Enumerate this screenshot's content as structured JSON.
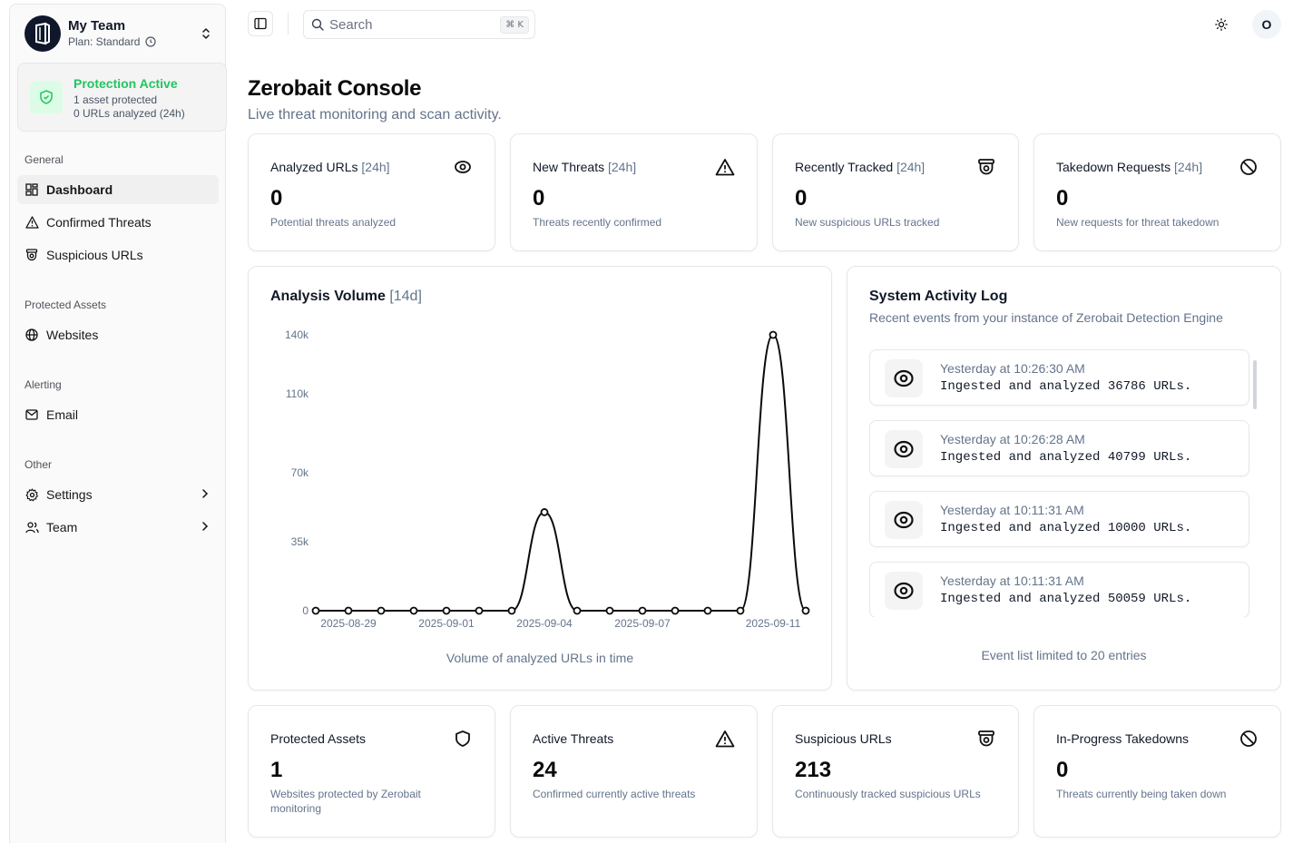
{
  "team": {
    "name": "My Team",
    "plan": "Plan: Standard"
  },
  "protection": {
    "title": "Protection Active",
    "assets": "1 asset protected",
    "urls": "0 URLs analyzed (24h)"
  },
  "nav": {
    "general": {
      "label": "General",
      "items": [
        "Dashboard",
        "Confirmed Threats",
        "Suspicious URLs"
      ]
    },
    "protected": {
      "label": "Protected Assets",
      "items": [
        "Websites"
      ]
    },
    "alerting": {
      "label": "Alerting",
      "items": [
        "Email"
      ]
    },
    "other": {
      "label": "Other",
      "items": [
        "Settings",
        "Team"
      ]
    }
  },
  "topbar": {
    "search_placeholder": "Search",
    "shortcut": "⌘ K",
    "avatar": "O"
  },
  "header": {
    "title": "Zerobait Console",
    "subtitle": "Live threat monitoring and scan activity."
  },
  "stats_top": [
    {
      "title": "Analyzed URLs",
      "range": "[24h]",
      "value": "0",
      "desc": "Potential threats analyzed",
      "icon": "scan-eye-icon"
    },
    {
      "title": "New Threats",
      "range": "[24h]",
      "value": "0",
      "desc": "Threats recently confirmed",
      "icon": "alert-triangle-icon"
    },
    {
      "title": "Recently Tracked",
      "range": "[24h]",
      "value": "0",
      "desc": "New suspicious URLs tracked",
      "icon": "cctv-icon"
    },
    {
      "title": "Takedown Requests",
      "range": "[24h]",
      "value": "0",
      "desc": "New requests for threat takedown",
      "icon": "ban-icon"
    }
  ],
  "stats_bottom": [
    {
      "title": "Protected Assets",
      "value": "1",
      "desc": "Websites protected by Zerobait monitoring",
      "icon": "shield-icon"
    },
    {
      "title": "Active Threats",
      "value": "24",
      "desc": "Confirmed currently active threats",
      "icon": "alert-triangle-icon"
    },
    {
      "title": "Suspicious URLs",
      "value": "213",
      "desc": "Continuously tracked suspicious URLs",
      "icon": "cctv-icon"
    },
    {
      "title": "In-Progress Takedowns",
      "value": "0",
      "desc": "Threats currently being taken down",
      "icon": "ban-icon"
    }
  ],
  "chart": {
    "title": "Analysis Volume",
    "range": "[14d]",
    "caption": "Volume of analyzed URLs in time"
  },
  "chart_data": {
    "type": "line",
    "x": [
      "2025-08-28",
      "2025-08-29",
      "2025-08-30",
      "2025-08-31",
      "2025-09-01",
      "2025-09-02",
      "2025-09-03",
      "2025-09-04",
      "2025-09-05",
      "2025-09-06",
      "2025-09-07",
      "2025-09-08",
      "2025-09-09",
      "2025-09-10",
      "2025-09-11",
      "2025-09-12"
    ],
    "series": [
      {
        "values": [
          0,
          0,
          0,
          0,
          0,
          0,
          0,
          50000,
          0,
          0,
          0,
          0,
          0,
          0,
          140000,
          0
        ]
      }
    ],
    "x_tick_labels": [
      "2025-08-29",
      "2025-09-01",
      "2025-09-04",
      "2025-09-07",
      "2025-09-11"
    ],
    "y_ticks": [
      0,
      35000,
      70000,
      110000,
      140000
    ],
    "y_tick_labels": [
      "0",
      "35k",
      "70k",
      "110k",
      "140k"
    ],
    "ylim": [
      0,
      140000
    ],
    "grid": false,
    "color": "#0a0a0a"
  },
  "activity": {
    "title": "System Activity Log",
    "subtitle": "Recent events from your instance of Zerobait Detection Engine",
    "items": [
      {
        "time": "Yesterday at 10:26:30 AM",
        "text": "Ingested and analyzed 36786 URLs."
      },
      {
        "time": "Yesterday at 10:26:28 AM",
        "text": "Ingested and analyzed 40799 URLs."
      },
      {
        "time": "Yesterday at 10:11:31 AM",
        "text": "Ingested and analyzed 10000 URLs."
      },
      {
        "time": "Yesterday at 10:11:31 AM",
        "text": "Ingested and analyzed 50059 URLs."
      }
    ],
    "footer": "Event list limited to 20 entries"
  }
}
